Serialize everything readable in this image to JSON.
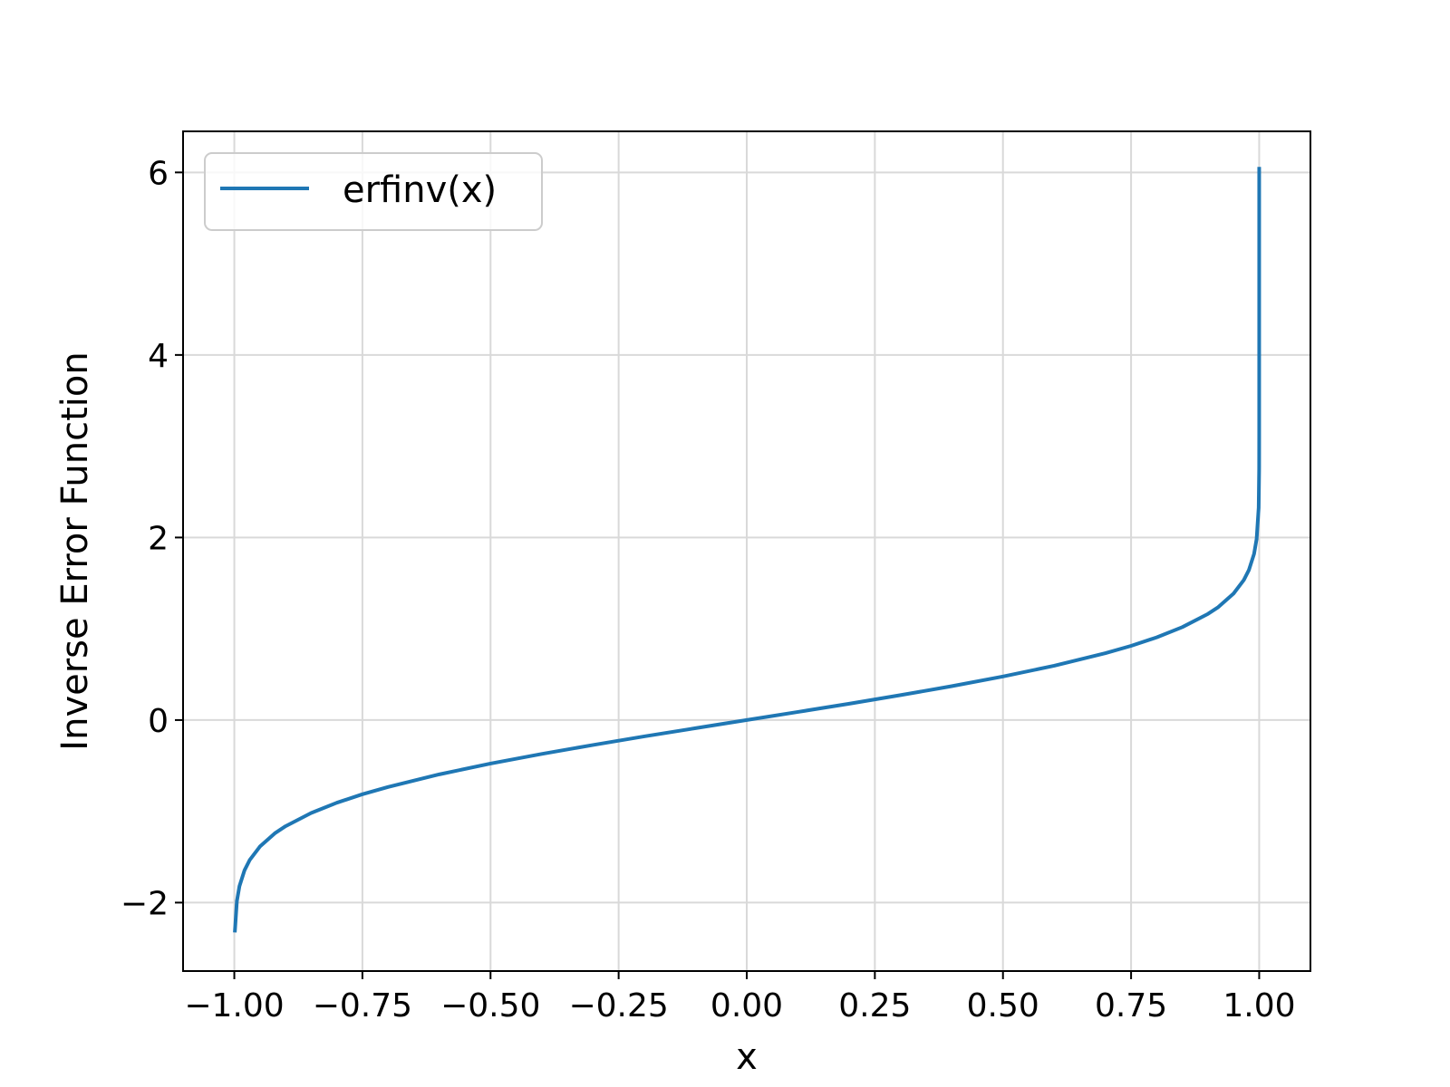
{
  "chart_data": {
    "type": "line",
    "title": "",
    "xlabel": "x",
    "ylabel": "Inverse Error Function",
    "xlim": [
      -1.1,
      1.1
    ],
    "ylim": [
      -2.75,
      6.45
    ],
    "xticks": [
      -1.0,
      -0.75,
      -0.5,
      -0.25,
      0.0,
      0.25,
      0.5,
      0.75,
      1.0
    ],
    "xtick_labels": [
      "−1.00",
      "−0.75",
      "−0.50",
      "−0.25",
      "0.00",
      "0.25",
      "0.50",
      "0.75",
      "1.00"
    ],
    "yticks": [
      -2,
      0,
      2,
      4,
      6
    ],
    "ytick_labels": [
      "−2",
      "0",
      "2",
      "4",
      "6"
    ],
    "grid": true,
    "legend_position": "upper-left",
    "series": [
      {
        "name": "erfinv(x)",
        "color": "#1f77b4",
        "x": [
          -0.99999,
          -0.9999,
          -0.999,
          -0.995,
          -0.99,
          -0.98,
          -0.97,
          -0.95,
          -0.92,
          -0.9,
          -0.85,
          -0.8,
          -0.75,
          -0.7,
          -0.6,
          -0.5,
          -0.4,
          -0.3,
          -0.2,
          -0.1,
          0.0,
          0.1,
          0.2,
          0.3,
          0.4,
          0.5,
          0.6,
          0.7,
          0.75,
          0.8,
          0.85,
          0.9,
          0.92,
          0.95,
          0.97,
          0.98,
          0.99,
          0.995,
          0.999,
          0.9999,
          0.99999,
          0.999999,
          0.9999999,
          0.99999999,
          0.999999999,
          0.9999999999,
          0.99999999999,
          0.999999999999,
          0.9999999999999,
          0.99999999999999,
          0.999999999999999,
          0.9999999999999999
        ],
        "y": [
          -3.123,
          -2.751,
          -2.327,
          -1.985,
          -1.821,
          -1.645,
          -1.534,
          -1.386,
          -1.237,
          -1.163,
          -1.018,
          -0.906,
          -0.813,
          -0.733,
          -0.595,
          -0.477,
          -0.371,
          -0.273,
          -0.179,
          -0.089,
          0.0,
          0.089,
          0.179,
          0.273,
          0.371,
          0.477,
          0.595,
          0.733,
          0.813,
          0.906,
          1.018,
          1.163,
          1.237,
          1.386,
          1.534,
          1.645,
          1.821,
          1.985,
          2.327,
          2.751,
          3.123,
          3.459,
          3.766,
          4.052,
          4.32,
          4.572,
          4.812,
          5.04,
          5.259,
          5.469,
          5.672,
          6.06
        ]
      }
    ]
  }
}
